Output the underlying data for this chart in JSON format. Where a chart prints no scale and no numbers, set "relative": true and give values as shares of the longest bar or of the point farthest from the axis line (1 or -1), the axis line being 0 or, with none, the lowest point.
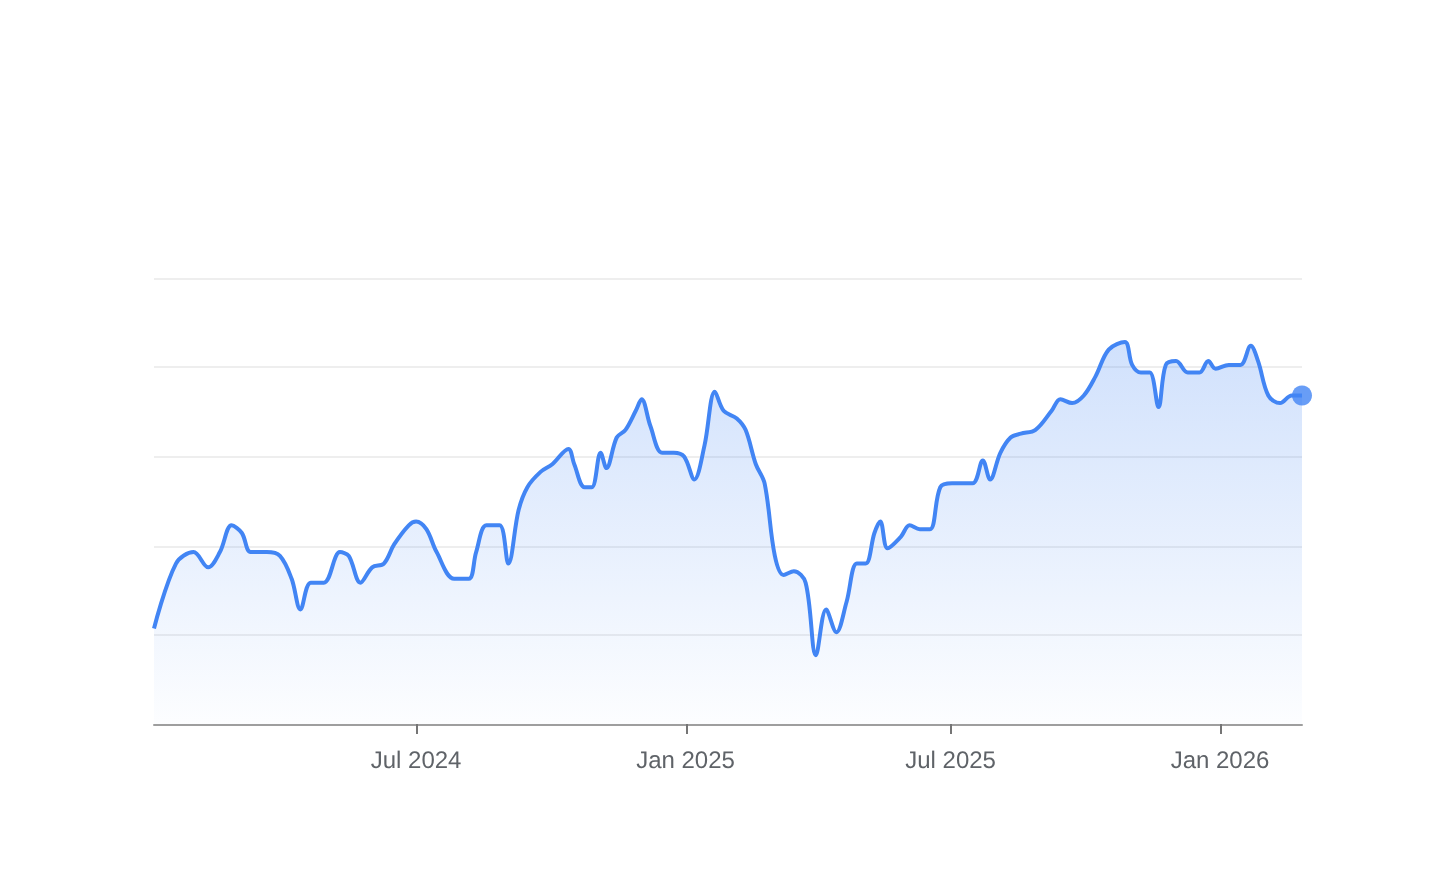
{
  "chart_data": {
    "type": "area",
    "relative": true,
    "grid": "y",
    "xlim": [
      "2024-01-04",
      "2026-02-26"
    ],
    "xticks": [
      {
        "value": "2024-07-01",
        "label": "Jul 2024"
      },
      {
        "value": "2025-01-01",
        "label": "Jan 2025"
      },
      {
        "value": "2025-07-01",
        "label": "Jul 2025"
      },
      {
        "value": "2026-01-01",
        "label": "Jan 2026"
      }
    ],
    "series": [
      {
        "color": "#4285f4",
        "x": [
          "2024-01-04",
          "2024-01-19",
          "2024-01-31",
          "2024-02-10",
          "2024-02-18",
          "2024-02-26",
          "2024-03-04",
          "2024-03-10",
          "2024-03-21",
          "2024-03-30",
          "2024-04-07",
          "2024-04-13",
          "2024-04-20",
          "2024-04-29",
          "2024-05-10",
          "2024-05-16",
          "2024-05-24",
          "2024-06-01",
          "2024-06-09",
          "2024-06-16",
          "2024-06-26",
          "2024-07-01",
          "2024-07-08",
          "2024-07-15",
          "2024-07-27",
          "2024-08-06",
          "2024-08-11",
          "2024-08-18",
          "2024-08-27",
          "2024-09-02",
          "2024-09-09",
          "2024-09-15",
          "2024-09-24",
          "2024-10-02",
          "2024-10-13",
          "2024-10-17",
          "2024-10-24",
          "2024-10-29",
          "2024-11-04",
          "2024-11-08",
          "2024-11-15",
          "2024-11-21",
          "2024-11-28",
          "2024-12-02",
          "2024-12-08",
          "2024-12-16",
          "2024-12-24",
          "2024-12-31",
          "2025-01-07",
          "2025-01-14",
          "2025-01-21",
          "2025-01-27",
          "2025-02-05",
          "2025-02-11",
          "2025-02-18",
          "2025-02-24",
          "2025-03-03",
          "2025-03-09",
          "2025-03-16",
          "2025-03-24",
          "2025-03-31",
          "2025-04-07",
          "2025-04-14",
          "2025-04-21",
          "2025-04-28",
          "2025-05-04",
          "2025-05-10",
          "2025-05-14",
          "2025-05-19",
          "2025-05-28",
          "2025-06-03",
          "2025-06-10",
          "2025-06-17",
          "2025-06-24",
          "2025-07-02",
          "2025-07-16",
          "2025-07-23",
          "2025-07-28",
          "2025-08-04",
          "2025-08-11",
          "2025-08-18",
          "2025-08-28",
          "2025-09-08",
          "2025-09-14",
          "2025-09-22",
          "2025-09-30",
          "2025-10-08",
          "2025-10-17",
          "2025-10-28",
          "2025-11-02",
          "2025-11-08",
          "2025-11-14",
          "2025-11-20",
          "2025-11-25",
          "2025-12-02",
          "2025-12-10",
          "2025-12-18",
          "2025-12-24",
          "2025-12-29",
          "2026-01-07",
          "2026-01-15",
          "2026-01-22",
          "2026-01-27",
          "2026-02-03",
          "2026-02-11",
          "2026-02-19",
          "2026-02-26"
        ],
        "values": [
          0.25,
          0.42,
          0.45,
          0.41,
          0.45,
          0.52,
          0.5,
          0.45,
          0.45,
          0.44,
          0.38,
          0.3,
          0.37,
          0.37,
          0.45,
          0.44,
          0.37,
          0.41,
          0.42,
          0.47,
          0.52,
          0.53,
          0.51,
          0.45,
          0.38,
          0.38,
          0.45,
          0.52,
          0.52,
          0.42,
          0.56,
          0.62,
          0.66,
          0.68,
          0.72,
          0.68,
          0.62,
          0.62,
          0.71,
          0.67,
          0.75,
          0.77,
          0.82,
          0.85,
          0.78,
          0.71,
          0.71,
          0.7,
          0.64,
          0.73,
          0.87,
          0.82,
          0.8,
          0.77,
          0.68,
          0.63,
          0.44,
          0.39,
          0.4,
          0.37,
          0.18,
          0.3,
          0.24,
          0.32,
          0.42,
          0.42,
          0.5,
          0.53,
          0.46,
          0.49,
          0.52,
          0.51,
          0.51,
          0.62,
          0.63,
          0.63,
          0.69,
          0.64,
          0.71,
          0.75,
          0.76,
          0.77,
          0.82,
          0.85,
          0.84,
          0.86,
          0.91,
          0.98,
          1,
          0.94,
          0.92,
          0.92,
          0.83,
          0.94,
          0.95,
          0.92,
          0.92,
          0.95,
          0.93,
          0.94,
          0.94,
          0.99,
          0.95,
          0.86,
          0.84,
          0.86,
          0.86
        ]
      },
      {
        "type": "scatter",
        "color": "#4285f4",
        "marker": "circle",
        "x": [
          "2026-02-26"
        ],
        "values": [
          0.86
        ]
      }
    ]
  }
}
